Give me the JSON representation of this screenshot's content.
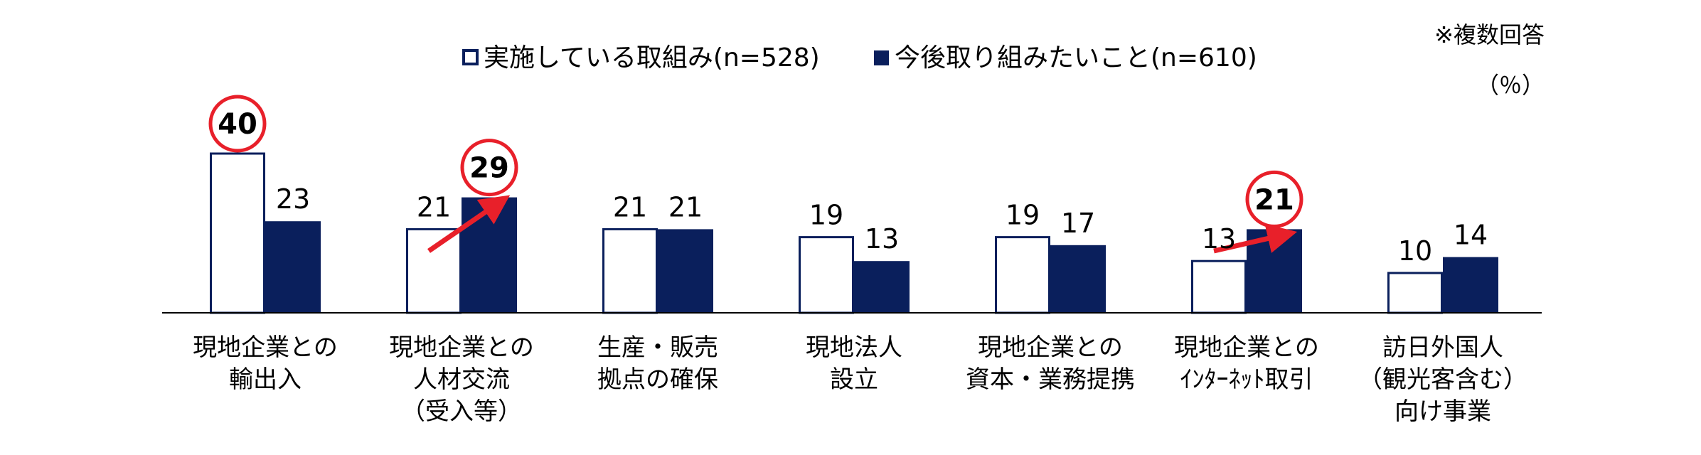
{
  "chart_data": {
    "type": "bar",
    "note": "※複数回答",
    "unit": "（％）",
    "colors": {
      "current": "#ffffff",
      "current_border": "#0a1f5c",
      "future": "#0a1f5c",
      "highlight": "#e8202a"
    },
    "series": [
      {
        "name": "実施している取組み(n=528)",
        "values": [
          40,
          21,
          21,
          19,
          19,
          13,
          10
        ]
      },
      {
        "name": "今後取り組みたいこと(n=610)",
        "values": [
          23,
          29,
          21,
          13,
          17,
          21,
          14
        ]
      }
    ],
    "categories": [
      {
        "lines": [
          "現地企業との",
          "輸出入"
        ]
      },
      {
        "lines": [
          "現地企業との",
          "人材交流",
          "（受入等）"
        ]
      },
      {
        "lines": [
          "生産・販売",
          "拠点の確保"
        ]
      },
      {
        "lines": [
          "現地法人",
          "設立"
        ]
      },
      {
        "lines": [
          "現地企業との",
          "資本・業務提携"
        ]
      },
      {
        "lines": [
          "現地企業との",
          "ｲﾝﾀｰﾈｯﾄ取引"
        ]
      },
      {
        "lines": [
          "訪日外国人",
          "（観光客含む）",
          "向け事業"
        ]
      }
    ],
    "highlights": [
      {
        "series": 0,
        "category": 0
      },
      {
        "series": 1,
        "category": 1
      },
      {
        "series": 1,
        "category": 5
      }
    ],
    "arrows": [
      1,
      5
    ],
    "ylim": [
      0,
      45
    ]
  }
}
